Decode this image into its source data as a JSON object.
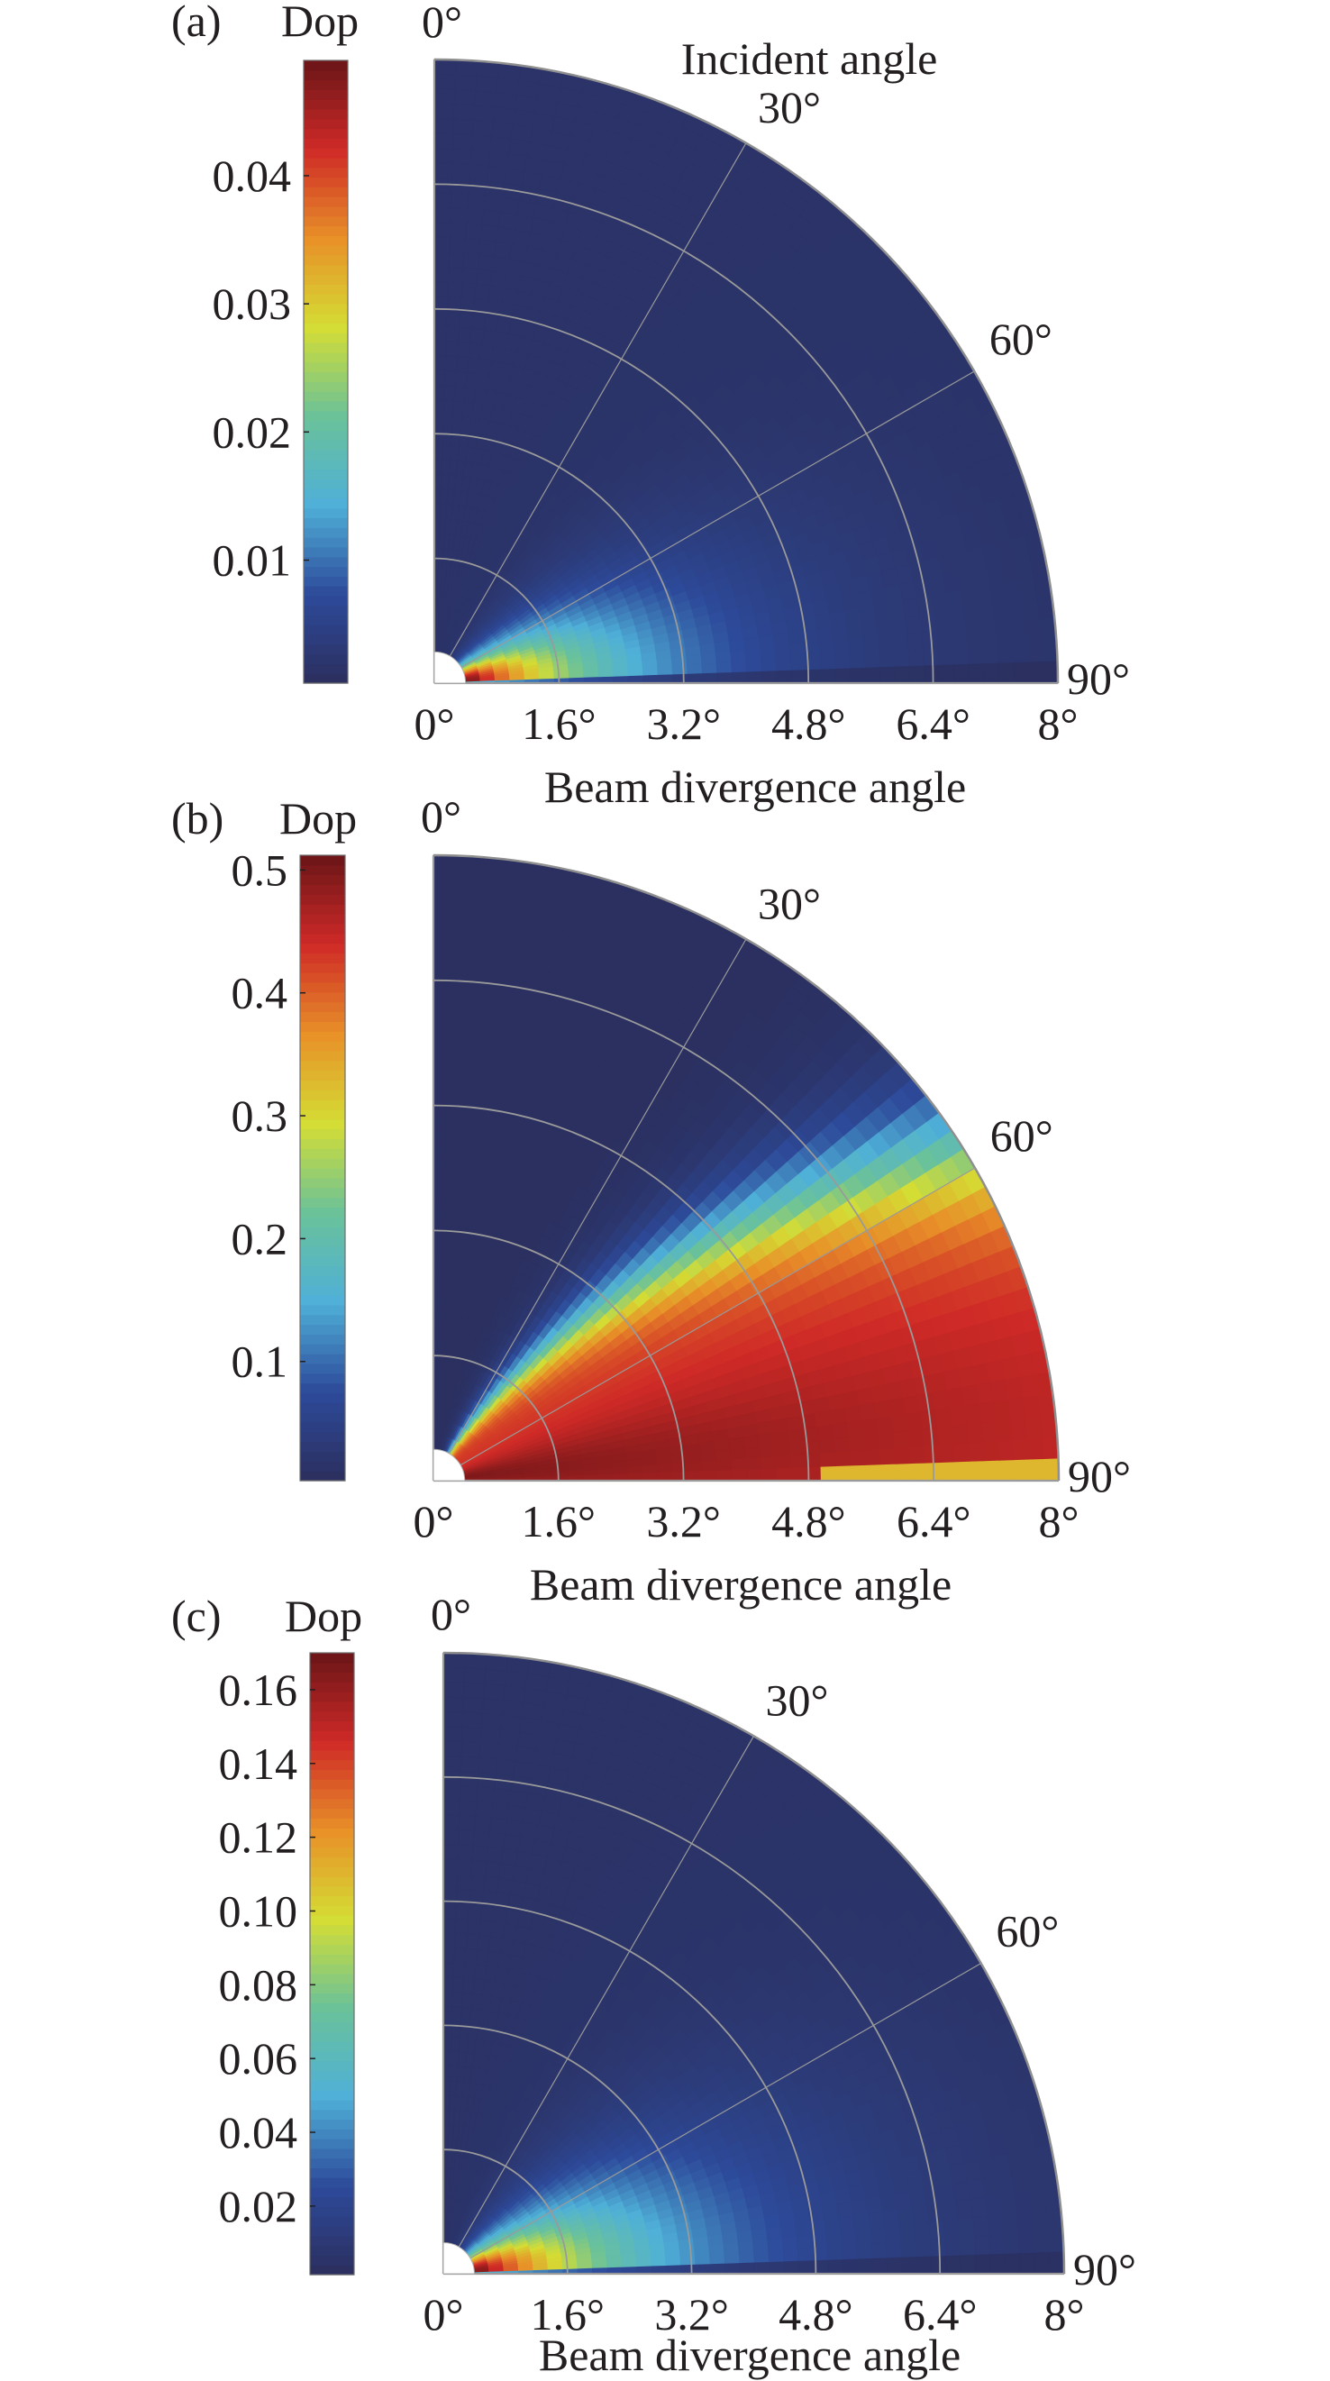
{
  "chart_data": [
    {
      "type": "heatmap",
      "panel_label": "(a)",
      "colorbar_title": "Dop",
      "colorbar_range": [
        0.0004,
        0.049
      ],
      "colorbar_ticks": [
        0.01,
        0.02,
        0.03,
        0.04
      ],
      "colorbar_tick_labels": [
        "0.01",
        "0.02",
        "0.03",
        "0.04"
      ],
      "angular_axis_title": "Incident angle",
      "angular_ticks": [
        0,
        30,
        60,
        90
      ],
      "angular_tick_labels": [
        "0°",
        "30°",
        "60°",
        "90°"
      ],
      "radial_axis_title": "Beam divergence angle",
      "radial_range": [
        0,
        8
      ],
      "radial_ticks": [
        0,
        1.6,
        3.2,
        4.8,
        6.4,
        8
      ],
      "radial_tick_labels": [
        "0°",
        "1.6°",
        "3.2°",
        "4.8°",
        "6.4°",
        "8°"
      ],
      "grid": true,
      "pattern": {
        "description_model": "hotspot",
        "peak_value": 0.049,
        "peak_divergence": 0.4,
        "peak_incident": 86,
        "decay_divergence": 1.7,
        "angular_spread": 28,
        "floor": 0.0015
      }
    },
    {
      "type": "heatmap",
      "panel_label": "(b)",
      "colorbar_title": "Dop",
      "colorbar_range": [
        0.003,
        0.512
      ],
      "colorbar_ticks": [
        0.1,
        0.2,
        0.3,
        0.4,
        0.5
      ],
      "colorbar_tick_labels": [
        "0.1",
        "0.2",
        "0.3",
        "0.4",
        "0.5"
      ],
      "angular_ticks": [
        0,
        30,
        60,
        90
      ],
      "angular_tick_labels": [
        "0°",
        "30°",
        "60°",
        "90°"
      ],
      "radial_axis_title": "Beam divergence angle",
      "radial_range": [
        0,
        8
      ],
      "radial_ticks": [
        0,
        1.6,
        3.2,
        4.8,
        6.4,
        8
      ],
      "radial_tick_labels": [
        "0°",
        "1.6°",
        "3.2°",
        "4.8°",
        "6.4°",
        "8°"
      ],
      "grid": true,
      "pattern": {
        "description_model": "wedge",
        "peak_value": 0.5,
        "transition_incident_inner": 22,
        "transition_incident_outer": 58,
        "transition_width": 12,
        "floor": 0.005
      }
    },
    {
      "type": "heatmap",
      "panel_label": "(c)",
      "colorbar_title": "Dop",
      "colorbar_range": [
        0.0014,
        0.17
      ],
      "colorbar_ticks": [
        0.02,
        0.04,
        0.06,
        0.08,
        0.1,
        0.12,
        0.14,
        0.16
      ],
      "colorbar_tick_labels": [
        "0.02",
        "0.04",
        "0.06",
        "0.08",
        "0.10",
        "0.12",
        "0.14",
        "0.16"
      ],
      "angular_ticks": [
        0,
        30,
        60,
        90
      ],
      "angular_tick_labels": [
        "0°",
        "30°",
        "60°",
        "90°"
      ],
      "radial_axis_title": "Beam divergence angle",
      "radial_range": [
        0,
        8
      ],
      "radial_ticks": [
        0,
        1.6,
        3.2,
        4.8,
        6.4,
        8
      ],
      "radial_tick_labels": [
        "0°",
        "1.6°",
        "3.2°",
        "4.8°",
        "6.4°",
        "8°"
      ],
      "grid": true,
      "pattern": {
        "description_model": "hotspot",
        "peak_value": 0.17,
        "peak_divergence": 0.4,
        "peak_incident": 86,
        "decay_divergence": 1.9,
        "angular_spread": 32,
        "floor": 0.005
      }
    }
  ],
  "colors": {
    "text": "#231f20",
    "grid_line": "#9a9a9a",
    "colormap": [
      "#2b2f5e",
      "#2d4a9a",
      "#4fb0d8",
      "#6ac29a",
      "#d4dd34",
      "#e89028",
      "#cf2a27",
      "#6b1518"
    ]
  }
}
